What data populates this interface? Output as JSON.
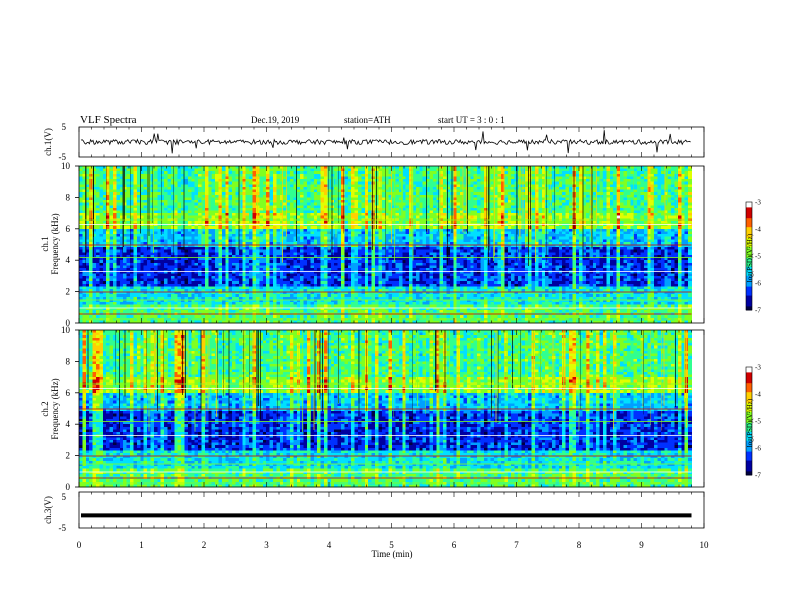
{
  "header": {
    "title": "VLF  Spectra",
    "date": "Dec.19, 2019",
    "station": "station=ATH",
    "start": "start  UT  =    3  : 0   : 1"
  },
  "chart_data": [
    {
      "type": "line",
      "name": "ch1-waveform",
      "ylabel": "ch.1(V)",
      "ylim": [
        -5,
        5
      ],
      "yticks": [
        "5",
        "-5"
      ],
      "xlim": [
        0,
        10
      ],
      "x_end": 9.8,
      "baseline": 0
    },
    {
      "type": "heatmap",
      "name": "ch1-spectrogram",
      "ylabel": "Frequency  (kHz)",
      "channel_label": "ch.1",
      "ylim": [
        0,
        10
      ],
      "yticks": [
        "0",
        "2",
        "4",
        "6",
        "8",
        "10"
      ],
      "xlim": [
        0,
        10
      ],
      "x_end": 9.8,
      "colorbar": {
        "label": "log(PSD)(V²/Hz)",
        "ticks": [
          "-3",
          "-4",
          "-5",
          "-6",
          "-7"
        ],
        "range": [
          -7,
          -3
        ]
      }
    },
    {
      "type": "heatmap",
      "name": "ch2-spectrogram",
      "ylabel": "Frequency  (kHz)",
      "channel_label": "ch.2",
      "ylim": [
        0,
        10
      ],
      "yticks": [
        "0",
        "2",
        "4",
        "6",
        "8",
        "10"
      ],
      "xlim": [
        0,
        10
      ],
      "x_end": 9.8,
      "colorbar": {
        "label": "log(PSD)(V²/Hz)",
        "ticks": [
          "-3",
          "-4",
          "-5",
          "-6",
          "-7"
        ],
        "range": [
          -7,
          -3
        ]
      }
    },
    {
      "type": "line",
      "name": "ch3-waveform",
      "ylabel": "ch.3(V)",
      "ylim": [
        -5,
        5
      ],
      "yticks": [
        "5",
        "-5"
      ],
      "xlim": [
        0,
        10
      ],
      "x_end": 9.8,
      "baseline": -1.5
    }
  ],
  "xaxis": {
    "label": "Time  (min)",
    "ticks": [
      "0",
      "1",
      "2",
      "3",
      "4",
      "5",
      "6",
      "7",
      "8",
      "9",
      "10"
    ]
  },
  "colormap": [
    "#000040",
    "#0000a0",
    "#0030ff",
    "#00a0ff",
    "#00e0ff",
    "#30ff90",
    "#80ff20",
    "#e0ff00",
    "#ffd000",
    "#ff6000",
    "#d00000",
    "#ffffff"
  ]
}
